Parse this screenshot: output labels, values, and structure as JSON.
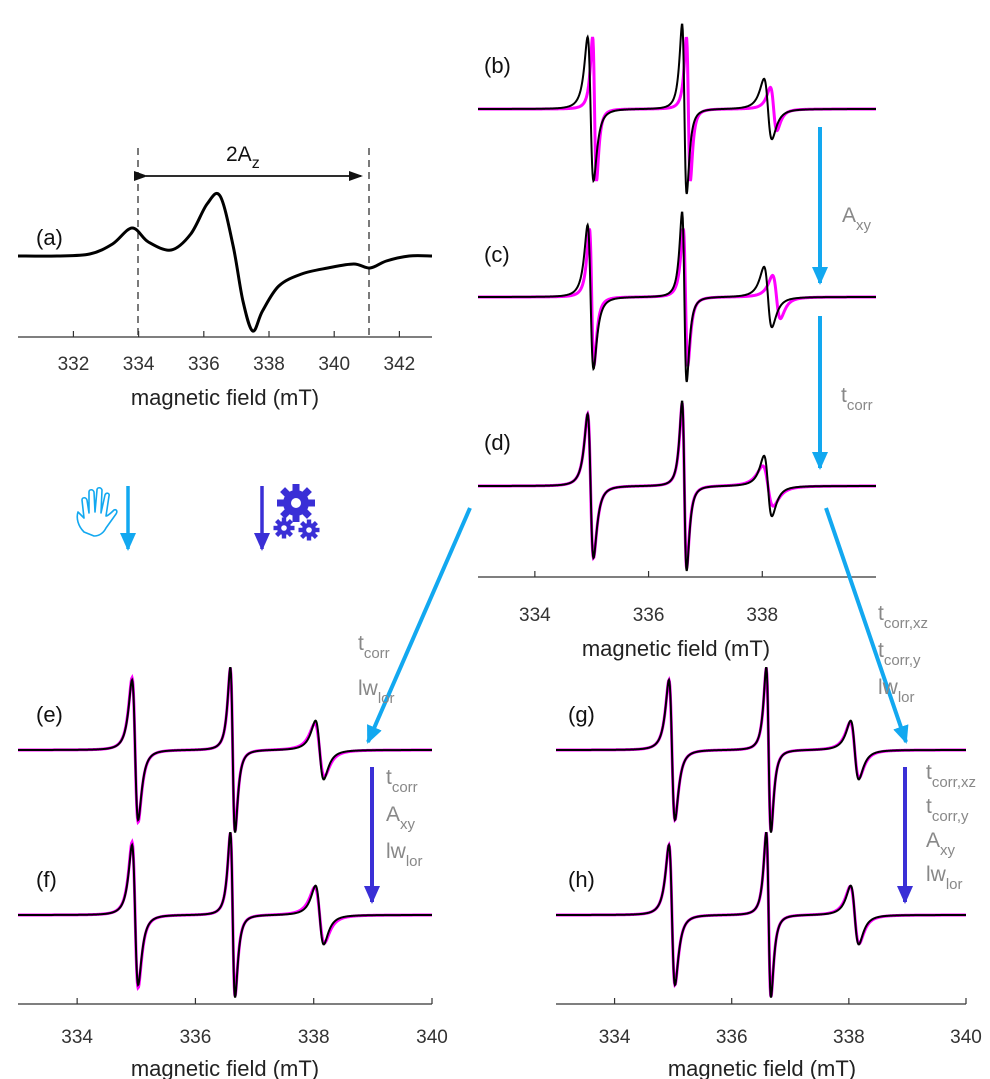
{
  "chart_data": [
    {
      "id": "a",
      "type": "line",
      "panel_label": "(a)",
      "xlabel": "magnetic field (mT)",
      "xlim": [
        330.3,
        343.0
      ],
      "xticks": [
        332,
        334,
        336,
        338,
        340,
        342
      ],
      "annotation": {
        "text": "2A",
        "sub": "z",
        "left_line_field": 333.8,
        "right_line_field": 341.1
      },
      "series": [
        {
          "color": "#000000",
          "kind": "slow_motion",
          "x": [
            330.3,
            331.5,
            332.5,
            333.2,
            333.8,
            334.3,
            335.0,
            335.6,
            336.1,
            336.5,
            336.9,
            337.2,
            337.5,
            337.8,
            338.3,
            339.0,
            339.8,
            340.6,
            341.1,
            341.6,
            342.3,
            343.0
          ],
          "y": [
            0.0,
            0.0,
            0.02,
            0.12,
            0.28,
            0.14,
            0.06,
            0.22,
            0.52,
            0.6,
            0.1,
            -0.45,
            -0.75,
            -0.55,
            -0.3,
            -0.18,
            -0.12,
            -0.08,
            -0.12,
            -0.05,
            0.0,
            0.0
          ]
        }
      ]
    },
    {
      "id": "b",
      "type": "line",
      "panel_label": "(b)",
      "xlim": [
        333.0,
        340.0
      ],
      "series": [
        {
          "color": "#ff00ff",
          "lines": [
            {
              "center": 335.05,
              "amp": 1.0,
              "width": 0.06
            },
            {
              "center": 336.7,
              "amp": 1.0,
              "width": 0.06
            },
            {
              "center": 338.2,
              "amp": 0.3,
              "width": 0.1
            }
          ]
        },
        {
          "color": "#000000",
          "lines": [
            {
              "center": 334.98,
              "amp": 1.0,
              "width": 0.09
            },
            {
              "center": 336.63,
              "amp": 1.18,
              "width": 0.07
            },
            {
              "center": 338.1,
              "amp": 0.42,
              "width": 0.12
            }
          ]
        }
      ]
    },
    {
      "id": "c",
      "type": "line",
      "panel_label": "(c)",
      "xlim": [
        333.0,
        340.0
      ],
      "series": [
        {
          "color": "#ff00ff",
          "lines": [
            {
              "center": 335.0,
              "amp": 0.95,
              "width": 0.07
            },
            {
              "center": 336.65,
              "amp": 0.95,
              "width": 0.07
            },
            {
              "center": 338.25,
              "amp": 0.3,
              "width": 0.12
            }
          ]
        },
        {
          "color": "#000000",
          "lines": [
            {
              "center": 334.98,
              "amp": 1.0,
              "width": 0.09
            },
            {
              "center": 336.63,
              "amp": 1.18,
              "width": 0.07
            },
            {
              "center": 338.1,
              "amp": 0.42,
              "width": 0.12
            }
          ]
        }
      ]
    },
    {
      "id": "d",
      "type": "line",
      "panel_label": "(d)",
      "xlabel": "magnetic field (mT)",
      "xlim": [
        333.0,
        340.0
      ],
      "xticks": [
        334,
        336,
        338
      ],
      "series": [
        {
          "color": "#ff00ff",
          "lines": [
            {
              "center": 334.98,
              "amp": 1.0,
              "width": 0.09
            },
            {
              "center": 336.63,
              "amp": 1.14,
              "width": 0.07
            },
            {
              "center": 338.1,
              "amp": 0.28,
              "width": 0.16
            }
          ]
        },
        {
          "color": "#000000",
          "lines": [
            {
              "center": 334.98,
              "amp": 1.0,
              "width": 0.09
            },
            {
              "center": 336.63,
              "amp": 1.18,
              "width": 0.07
            },
            {
              "center": 338.1,
              "amp": 0.42,
              "width": 0.12
            }
          ]
        }
      ]
    },
    {
      "id": "e",
      "type": "line",
      "panel_label": "(e)",
      "xlim": [
        333.0,
        340.0
      ],
      "series": [
        {
          "color": "#ff00ff",
          "lines": [
            {
              "center": 334.98,
              "amp": 1.03,
              "width": 0.09
            },
            {
              "center": 336.63,
              "amp": 1.16,
              "width": 0.07
            },
            {
              "center": 338.1,
              "amp": 0.38,
              "width": 0.14
            }
          ]
        },
        {
          "color": "#000000",
          "lines": [
            {
              "center": 334.98,
              "amp": 1.0,
              "width": 0.09
            },
            {
              "center": 336.63,
              "amp": 1.18,
              "width": 0.07
            },
            {
              "center": 338.1,
              "amp": 0.42,
              "width": 0.12
            }
          ]
        }
      ]
    },
    {
      "id": "f",
      "type": "line",
      "panel_label": "(f)",
      "xlabel": "magnetic field (mT)",
      "xlim": [
        333.0,
        340.0
      ],
      "xticks": [
        334,
        336,
        338,
        340
      ],
      "series": [
        {
          "color": "#ff00ff",
          "lines": [
            {
              "center": 334.98,
              "amp": 1.04,
              "width": 0.09
            },
            {
              "center": 336.63,
              "amp": 1.16,
              "width": 0.07
            },
            {
              "center": 338.1,
              "amp": 0.4,
              "width": 0.14
            }
          ]
        },
        {
          "color": "#000000",
          "lines": [
            {
              "center": 334.98,
              "amp": 1.0,
              "width": 0.09
            },
            {
              "center": 336.63,
              "amp": 1.18,
              "width": 0.07
            },
            {
              "center": 338.1,
              "amp": 0.42,
              "width": 0.12
            }
          ]
        }
      ]
    },
    {
      "id": "g",
      "type": "line",
      "panel_label": "(g)",
      "xlim": [
        333.0,
        340.0
      ],
      "series": [
        {
          "color": "#ff00ff",
          "lines": [
            {
              "center": 334.98,
              "amp": 1.0,
              "width": 0.09
            },
            {
              "center": 336.63,
              "amp": 1.16,
              "width": 0.07
            },
            {
              "center": 338.1,
              "amp": 0.4,
              "width": 0.13
            }
          ]
        },
        {
          "color": "#000000",
          "lines": [
            {
              "center": 334.98,
              "amp": 1.0,
              "width": 0.09
            },
            {
              "center": 336.63,
              "amp": 1.18,
              "width": 0.07
            },
            {
              "center": 338.1,
              "amp": 0.42,
              "width": 0.12
            }
          ]
        }
      ]
    },
    {
      "id": "h",
      "type": "line",
      "panel_label": "(h)",
      "xlabel": "magnetic field (mT)",
      "xlim": [
        333.0,
        340.0
      ],
      "xticks": [
        334,
        336,
        338,
        340
      ],
      "series": [
        {
          "color": "#ff00ff",
          "lines": [
            {
              "center": 334.98,
              "amp": 1.0,
              "width": 0.09
            },
            {
              "center": 336.63,
              "amp": 1.17,
              "width": 0.07
            },
            {
              "center": 338.1,
              "amp": 0.41,
              "width": 0.13
            }
          ]
        },
        {
          "color": "#000000",
          "lines": [
            {
              "center": 334.98,
              "amp": 1.0,
              "width": 0.09
            },
            {
              "center": 336.63,
              "amp": 1.18,
              "width": 0.07
            },
            {
              "center": 338.1,
              "amp": 0.42,
              "width": 0.12
            }
          ]
        }
      ]
    }
  ],
  "colors": {
    "fit": "#ff00ff",
    "experiment": "#000000",
    "manual_arrow": "#12a8f0",
    "auto_arrow": "#3a2fd6",
    "param_text": "#888888"
  },
  "legend_icons": {
    "manual": "hand-icon",
    "automatic": "gears-icon"
  },
  "steps": {
    "b_to_c": [
      {
        "t": "A",
        "s": "xy"
      }
    ],
    "c_to_d": [
      {
        "t": "t",
        "s": "corr"
      }
    ],
    "d_to_e": [
      {
        "t": "t",
        "s": "corr"
      },
      {
        "t": "lw",
        "s": "lor"
      }
    ],
    "d_to_g": [
      {
        "t": "t",
        "s": "corr,xz"
      },
      {
        "t": "t",
        "s": "corr,y"
      },
      {
        "t": "lw",
        "s": "lor"
      }
    ],
    "e_to_f": [
      {
        "t": "t",
        "s": "corr"
      },
      {
        "t": "A",
        "s": "xy"
      },
      {
        "t": "lw",
        "s": "lor"
      }
    ],
    "g_to_h": [
      {
        "t": "t",
        "s": "corr,xz"
      },
      {
        "t": "t",
        "s": "corr,y"
      },
      {
        "t": "A",
        "s": "xy"
      },
      {
        "t": "lw",
        "s": "lor"
      }
    ]
  }
}
